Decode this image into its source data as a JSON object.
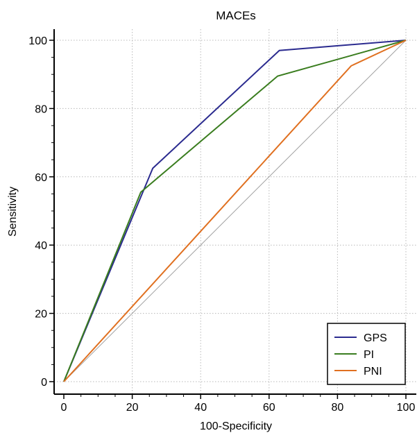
{
  "chart_data": {
    "type": "line",
    "title": "MACEs",
    "xlabel": "100-Specificity",
    "ylabel": "Sensitivity",
    "xlim": [
      0,
      100
    ],
    "ylim": [
      0,
      100
    ],
    "xticks": [
      "0",
      "20",
      "40",
      "60",
      "80",
      "100"
    ],
    "yticks": [
      "0",
      "20",
      "40",
      "60",
      "80",
      "100"
    ],
    "grid": "dotted",
    "legend_position": "bottom-right",
    "reference_line": "diagonal",
    "series": [
      {
        "name": "GPS",
        "color": "#2b2b8f",
        "points": [
          [
            0,
            0
          ],
          [
            26,
            62.5
          ],
          [
            63,
            97
          ],
          [
            100,
            100
          ]
        ]
      },
      {
        "name": "PI",
        "color": "#3a7d1f",
        "points": [
          [
            0,
            0
          ],
          [
            22.5,
            55.5
          ],
          [
            62.5,
            89.5
          ],
          [
            100,
            100
          ]
        ]
      },
      {
        "name": "PNI",
        "color": "#e07020",
        "points": [
          [
            0,
            0
          ],
          [
            84,
            92.5
          ],
          [
            100,
            100
          ]
        ]
      }
    ]
  }
}
